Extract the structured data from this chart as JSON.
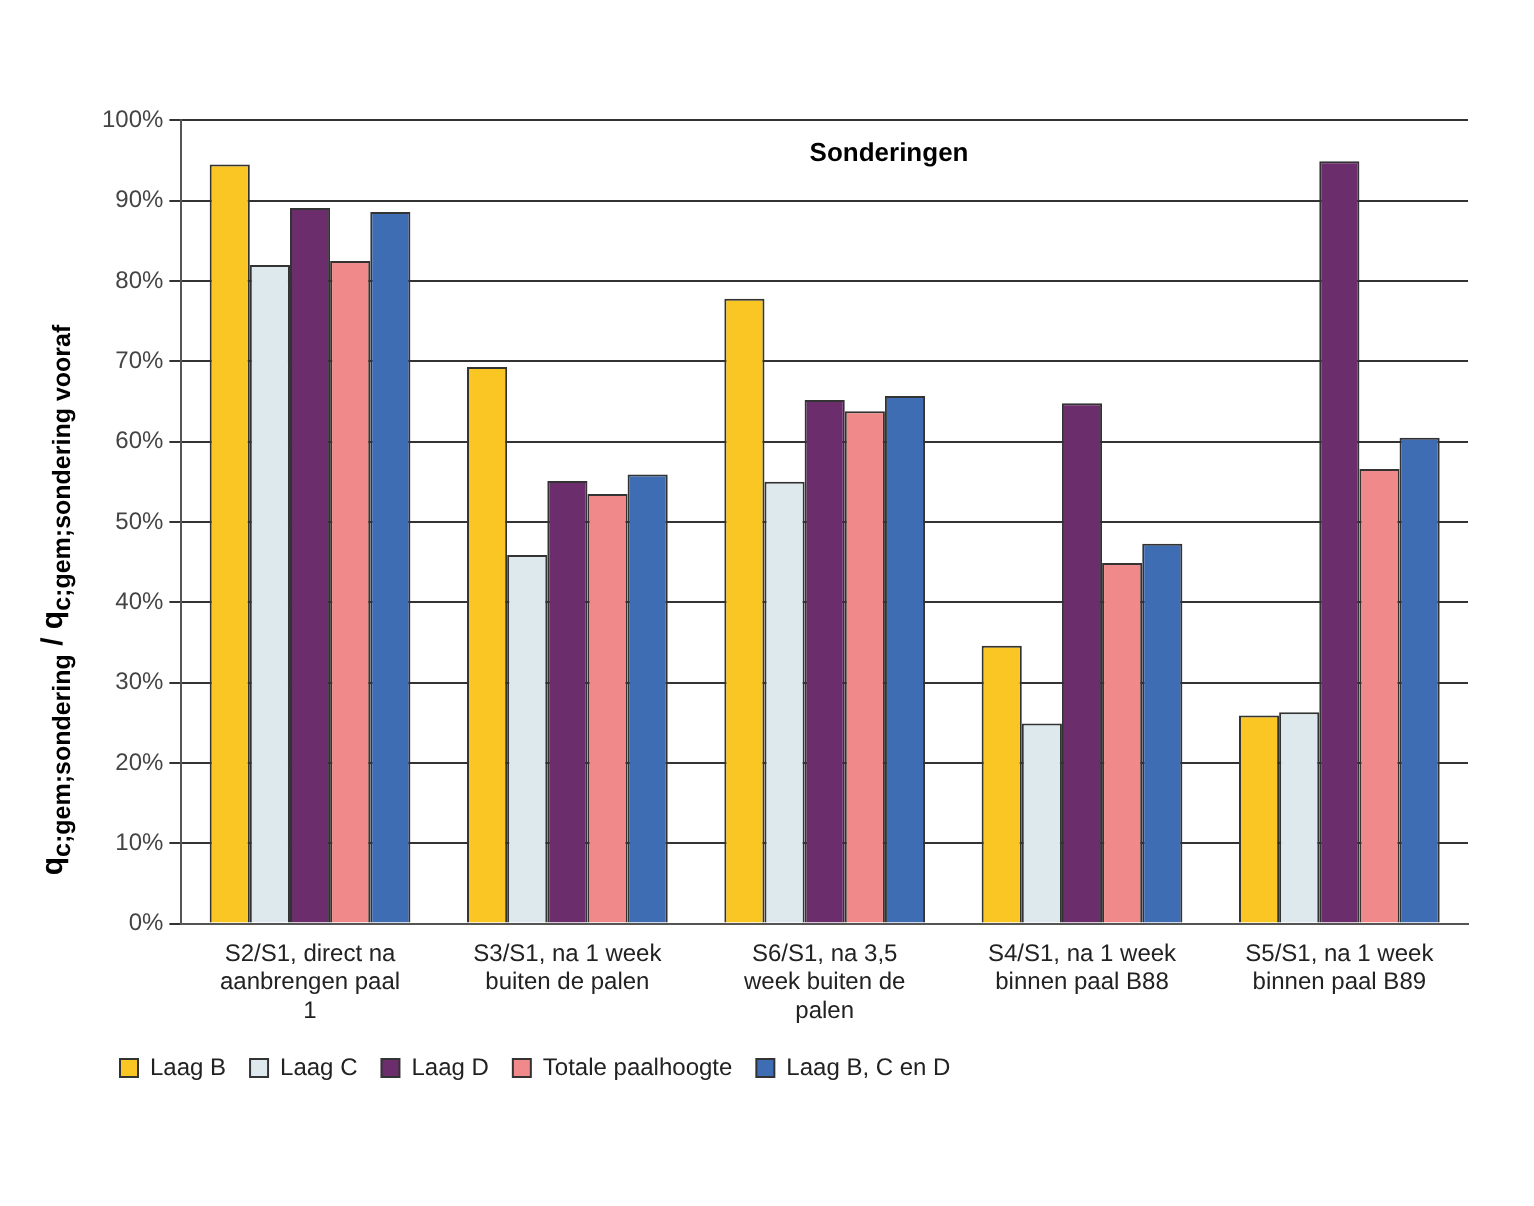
{
  "chart_data": {
    "type": "bar",
    "title": "Sonderingen",
    "ylabel": "q$_{c;gem;sondering}$ / q$_{c;gem;sondering vooraf}$",
    "categories": [
      "S2/S1, direct na aanbrengen paal 1",
      "S3/S1, na 1 week buiten de palen",
      "S6/S1, na 3,5 week buiten de palen",
      "S4/S1, na 1 week binnen paal B88",
      "S5/S1, na 1 week binnen paal B89"
    ],
    "series": [
      {
        "name": "Laag B",
        "color": "#f9c623",
        "values": [
          94.5,
          69.3,
          77.8,
          34.6,
          25.9
        ]
      },
      {
        "name": "Laag C",
        "color": "#dde9ec",
        "values": [
          82.0,
          45.9,
          55.0,
          24.9,
          26.3
        ]
      },
      {
        "name": "Laag D",
        "color": "#6b2d6b",
        "values": [
          89.1,
          55.1,
          65.2,
          64.8,
          94.9
        ]
      },
      {
        "name": "Totale paalhoogte",
        "color": "#f08a8a",
        "values": [
          82.5,
          53.5,
          63.8,
          44.9,
          56.6
        ]
      },
      {
        "name": "Laag B, C en D",
        "color": "#3f6db3",
        "values": [
          88.6,
          55.9,
          65.7,
          47.3,
          60.5
        ]
      }
    ],
    "ylim": [
      0,
      100
    ],
    "yticks": [
      {
        "value": 0,
        "label": "0%"
      },
      {
        "value": 10,
        "label": "10%"
      },
      {
        "value": 20,
        "label": "20%"
      },
      {
        "value": 30,
        "label": "30%"
      },
      {
        "value": 40,
        "label": "40%"
      },
      {
        "value": 50,
        "label": "50%"
      },
      {
        "value": 60,
        "label": "60%"
      },
      {
        "value": 70,
        "label": "70%"
      },
      {
        "value": 80,
        "label": "80%"
      },
      {
        "value": 90,
        "label": "90%"
      },
      {
        "value": 100,
        "label": "100%"
      }
    ],
    "grid": "y",
    "legend": "bottom"
  }
}
